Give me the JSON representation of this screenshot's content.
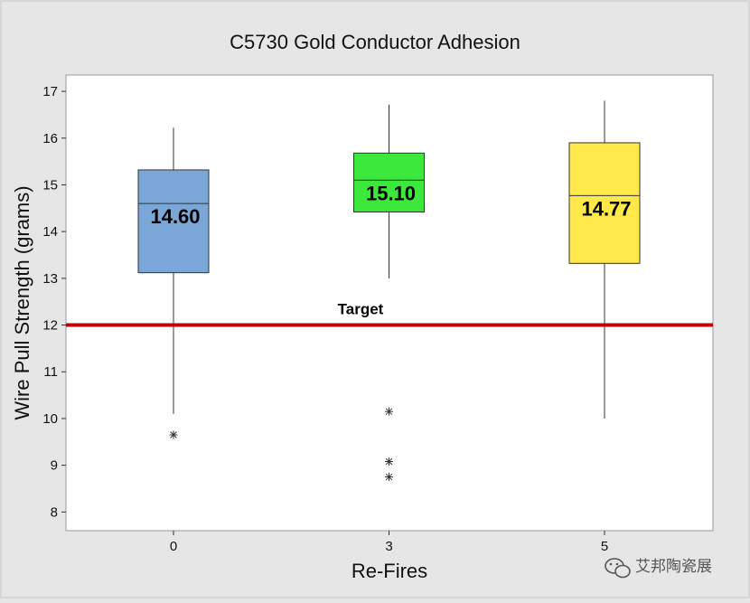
{
  "chart_data": {
    "type": "boxplot",
    "title": "C5730 Gold Conductor Adhesion",
    "xlabel": "Re-Fires",
    "ylabel": "Wire Pull Strength (grams)",
    "ylim": [
      7.6,
      17.35
    ],
    "yticks": [
      8,
      9,
      10,
      11,
      12,
      13,
      14,
      15,
      16,
      17
    ],
    "categories": [
      "0",
      "3",
      "5"
    ],
    "boxes": [
      {
        "category": "0",
        "color": "#7ba7d8",
        "whisker_low": 10.1,
        "q1": 13.12,
        "median": 14.6,
        "q3": 15.32,
        "whisker_high": 16.22,
        "outliers": [
          9.65
        ],
        "median_label": "14.60"
      },
      {
        "category": "3",
        "color": "#3de83d",
        "whisker_low": 13.0,
        "q1": 14.42,
        "median": 15.1,
        "q3": 15.68,
        "whisker_high": 16.72,
        "outliers": [
          10.15,
          9.08,
          8.75
        ],
        "median_label": "15.10"
      },
      {
        "category": "5",
        "color": "#ffe84a",
        "whisker_low": 10.0,
        "q1": 13.32,
        "median": 14.77,
        "q3": 15.9,
        "whisker_high": 16.8,
        "outliers": [],
        "median_label": "14.77"
      }
    ],
    "reference_line": {
      "value": 12,
      "label": "Target",
      "color": "#c00000"
    }
  },
  "watermark": {
    "text": "艾邦陶瓷展",
    "icon": "wechat-icon"
  }
}
